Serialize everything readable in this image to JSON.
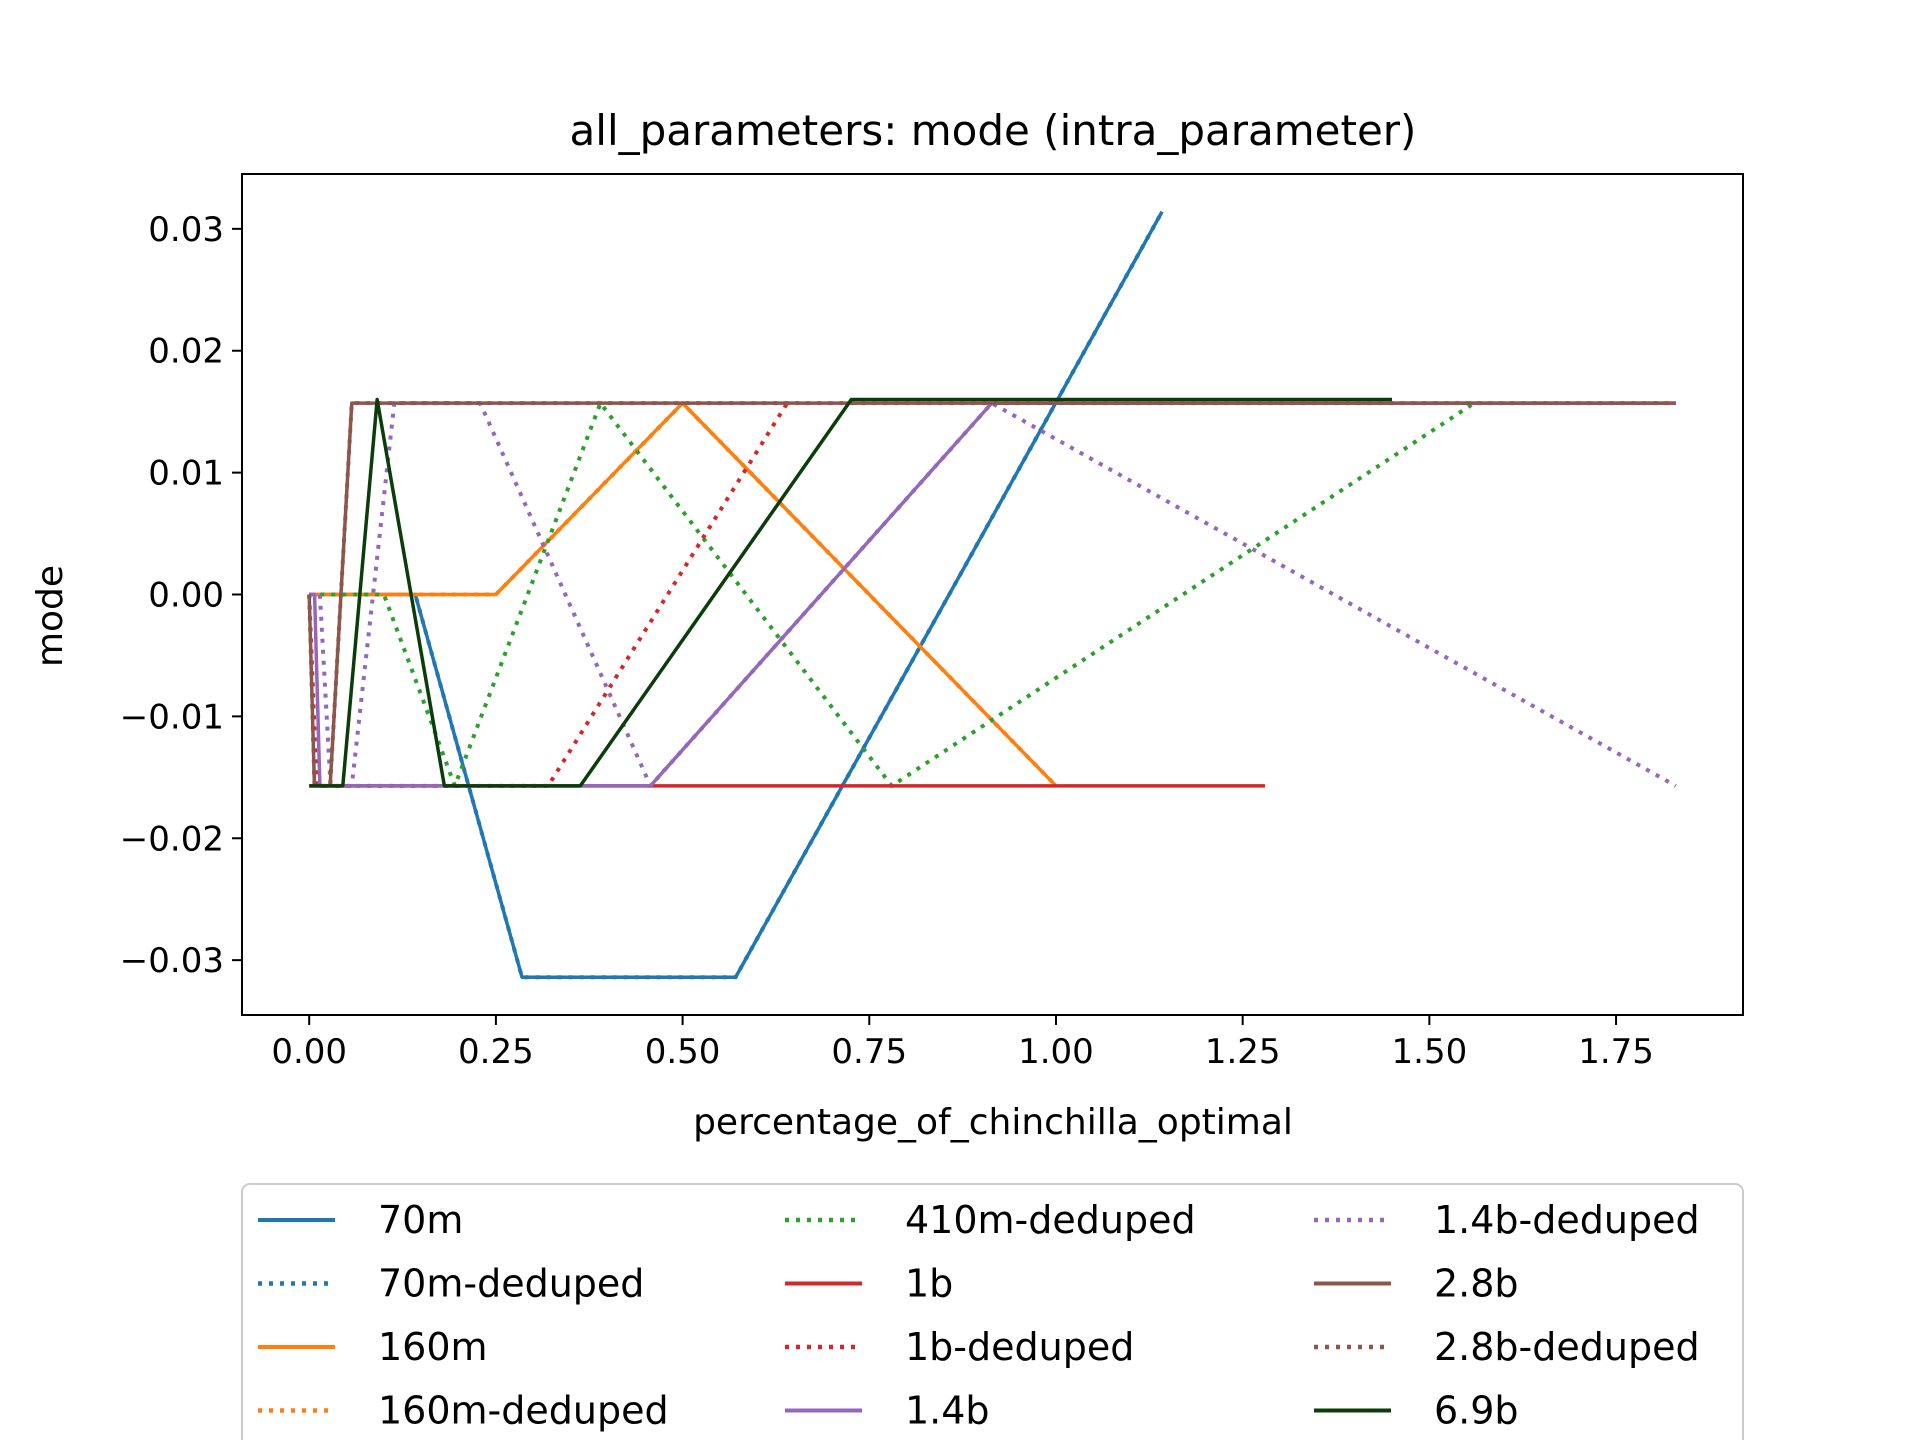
{
  "chart_data": {
    "type": "line",
    "title": "all_parameters: mode (intra_parameter)",
    "xlabel": "percentage_of_chinchilla_optimal",
    "ylabel": "mode",
    "xlim": [
      -0.09,
      1.92
    ],
    "ylim": [
      -0.0345,
      0.0345
    ],
    "xticks": [
      0.0,
      0.25,
      0.5,
      0.75,
      1.0,
      1.25,
      1.5,
      1.75
    ],
    "xtick_labels": [
      "0.00",
      "0.25",
      "0.50",
      "0.75",
      "1.00",
      "1.25",
      "1.50",
      "1.75"
    ],
    "yticks": [
      0.03,
      0.02,
      0.01,
      0.0,
      -0.01,
      -0.02,
      -0.03
    ],
    "ytick_labels": [
      "0.03",
      "0.02",
      "0.01",
      "0.00",
      "−0.01",
      "−0.02",
      "−0.03"
    ],
    "grid": false,
    "legend_position": "below",
    "legend_columns": 3,
    "series": [
      {
        "name": "70m",
        "color": "#1f77b4",
        "style": "solid",
        "x": [
          0.0,
          0.142,
          0.285,
          0.571,
          0.857,
          1.142
        ],
        "y": [
          0.0,
          0.0,
          -0.0314,
          -0.0314,
          0.0,
          0.0314
        ]
      },
      {
        "name": "70m-deduped",
        "color": "#1f77b4",
        "style": "dotted",
        "x": [
          0.0,
          0.142,
          0.285,
          0.571,
          0.857,
          1.142
        ],
        "y": [
          0.0,
          0.0,
          -0.0314,
          -0.0314,
          0.0,
          0.0314
        ]
      },
      {
        "name": "160m",
        "color": "#ff7f0e",
        "style": "solid",
        "x": [
          0.0,
          0.25,
          0.5,
          1.0
        ],
        "y": [
          0.0,
          0.0,
          0.0157,
          -0.0157
        ]
      },
      {
        "name": "160m-deduped",
        "color": "#ff7f0e",
        "style": "dotted",
        "x": [
          0.0,
          0.25,
          0.5,
          1.0
        ],
        "y": [
          0.0,
          0.0,
          0.0157,
          -0.0157
        ]
      },
      {
        "name": "410m-deduped",
        "color": "#2ca02c",
        "style": "dotted",
        "x": [
          0.0,
          0.1,
          0.195,
          0.39,
          0.78,
          1.56
        ],
        "y": [
          0.0,
          0.0,
          -0.0157,
          0.0157,
          -0.0157,
          0.0157
        ]
      },
      {
        "name": "1b",
        "color": "#d62728",
        "style": "solid",
        "x": [
          0.0,
          1.28
        ],
        "y": [
          -0.0157,
          -0.0157
        ]
      },
      {
        "name": "1b-deduped",
        "color": "#d62728",
        "style": "dotted",
        "x": [
          0.0,
          0.01,
          0.02,
          0.04,
          0.08,
          0.16,
          0.32,
          0.64
        ],
        "y": [
          0.0,
          -0.0157,
          -0.0157,
          -0.0157,
          -0.0157,
          -0.0157,
          -0.0157,
          0.0157
        ]
      },
      {
        "name": "1.4b",
        "color": "#9467bd",
        "style": "solid",
        "x": [
          0.0,
          0.0072,
          0.0143,
          0.0286,
          0.057,
          0.114,
          0.229,
          0.457,
          0.914,
          1.83
        ],
        "y": [
          0.0,
          0.0,
          -0.0157,
          -0.0157,
          -0.0157,
          -0.0157,
          -0.0157,
          -0.0157,
          0.0157,
          0.0157
        ]
      },
      {
        "name": "1.4b-deduped",
        "color": "#9467bd",
        "style": "dotted",
        "x": [
          0.0,
          0.0143,
          0.0286,
          0.057,
          0.114,
          0.229,
          0.457,
          0.914,
          1.83
        ],
        "y": [
          0.0,
          0.0,
          -0.0157,
          -0.0157,
          0.0157,
          0.0157,
          -0.0157,
          0.0157,
          -0.0157
        ]
      },
      {
        "name": "2.8b",
        "color": "#8c564b",
        "style": "solid",
        "x": [
          0.0,
          0.007,
          0.014,
          0.028,
          0.057,
          0.114,
          0.228,
          0.456,
          0.912,
          1.83
        ],
        "y": [
          0.0,
          -0.0157,
          -0.0157,
          -0.0157,
          0.0157,
          0.0157,
          0.0157,
          0.0157,
          0.0157,
          0.0157
        ]
      },
      {
        "name": "2.8b-deduped",
        "color": "#8c564b",
        "style": "dotted",
        "x": [
          0.0,
          0.007,
          0.014,
          0.028,
          0.057,
          0.114,
          0.228,
          0.456,
          0.912,
          1.83
        ],
        "y": [
          0.0,
          -0.0157,
          -0.0157,
          -0.0157,
          0.0157,
          0.0157,
          0.0157,
          0.0157,
          0.0157,
          0.0157
        ]
      },
      {
        "name": "6.9b",
        "color": "#0b3d0b",
        "style": "solid",
        "x": [
          0.0,
          0.0113,
          0.0227,
          0.045,
          0.091,
          0.181,
          0.363,
          0.726,
          1.45
        ],
        "y": [
          -0.0157,
          -0.0157,
          -0.0157,
          -0.0157,
          0.016,
          -0.0157,
          -0.0157,
          0.016,
          0.016
        ]
      }
    ]
  }
}
